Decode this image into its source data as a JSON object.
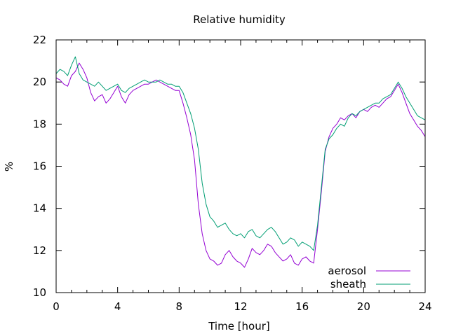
{
  "chart_data": {
    "type": "line",
    "title": "Relative humidity",
    "xlabel": "Time [hour]",
    "ylabel": "%",
    "xlim": [
      0,
      24
    ],
    "ylim": [
      10,
      22
    ],
    "xticks": [
      "0",
      "4",
      "8",
      "12",
      "16",
      "20",
      "24"
    ],
    "yticks": [
      "10",
      "12",
      "14",
      "16",
      "18",
      "20",
      "22"
    ],
    "grid": false,
    "legend_position": "bottom-right",
    "series": [
      {
        "name": "aerosol",
        "color": "#9400d3",
        "x": [
          0,
          0.25,
          0.5,
          0.75,
          1,
          1.25,
          1.5,
          1.75,
          2,
          2.25,
          2.5,
          2.75,
          3,
          3.25,
          3.5,
          3.75,
          4,
          4.25,
          4.5,
          4.75,
          5,
          5.25,
          5.5,
          5.75,
          6,
          6.25,
          6.5,
          6.75,
          7,
          7.25,
          7.5,
          7.75,
          8,
          8.25,
          8.5,
          8.75,
          9,
          9.25,
          9.5,
          9.75,
          10,
          10.25,
          10.5,
          10.75,
          11,
          11.25,
          11.5,
          11.75,
          12,
          12.25,
          12.5,
          12.75,
          13,
          13.25,
          13.5,
          13.75,
          14,
          14.25,
          14.5,
          14.75,
          15,
          15.25,
          15.5,
          15.75,
          16,
          16.25,
          16.5,
          16.75,
          17,
          17.25,
          17.5,
          17.75,
          18,
          18.25,
          18.5,
          18.75,
          19,
          19.25,
          19.5,
          19.75,
          20,
          20.25,
          20.5,
          20.75,
          21,
          21.25,
          21.5,
          21.75,
          22,
          22.25,
          22.5,
          22.75,
          23,
          23.25,
          23.5,
          23.75,
          24
        ],
        "y": [
          20.2,
          20.1,
          19.9,
          19.8,
          20.3,
          20.5,
          20.9,
          20.6,
          20.2,
          19.5,
          19.1,
          19.3,
          19.4,
          19.0,
          19.2,
          19.5,
          19.8,
          19.3,
          19.0,
          19.4,
          19.6,
          19.7,
          19.8,
          19.9,
          19.9,
          20.0,
          20.1,
          20.0,
          19.9,
          19.8,
          19.7,
          19.6,
          19.6,
          19.0,
          18.3,
          17.5,
          16.3,
          14.2,
          12.8,
          12.0,
          11.6,
          11.5,
          11.3,
          11.4,
          11.8,
          12.0,
          11.7,
          11.5,
          11.4,
          11.2,
          11.6,
          12.1,
          11.9,
          11.8,
          12.0,
          12.3,
          12.2,
          11.9,
          11.7,
          11.5,
          11.6,
          11.8,
          11.4,
          11.3,
          11.6,
          11.7,
          11.5,
          11.4,
          13.0,
          14.8,
          16.7,
          17.4,
          17.8,
          18.0,
          18.3,
          18.2,
          18.4,
          18.5,
          18.3,
          18.6,
          18.7,
          18.6,
          18.8,
          18.9,
          18.8,
          19.0,
          19.2,
          19.3,
          19.6,
          19.9,
          19.5,
          19.0,
          18.5,
          18.2,
          17.9,
          17.7,
          17.4
        ]
      },
      {
        "name": "sheath",
        "color": "#009e73",
        "x": [
          0,
          0.25,
          0.5,
          0.75,
          1,
          1.25,
          1.5,
          1.75,
          2,
          2.25,
          2.5,
          2.75,
          3,
          3.25,
          3.5,
          3.75,
          4,
          4.25,
          4.5,
          4.75,
          5,
          5.25,
          5.5,
          5.75,
          6,
          6.25,
          6.5,
          6.75,
          7,
          7.25,
          7.5,
          7.75,
          8,
          8.25,
          8.5,
          8.75,
          9,
          9.25,
          9.5,
          9.75,
          10,
          10.25,
          10.5,
          10.75,
          11,
          11.25,
          11.5,
          11.75,
          12,
          12.25,
          12.5,
          12.75,
          13,
          13.25,
          13.5,
          13.75,
          14,
          14.25,
          14.5,
          14.75,
          15,
          15.25,
          15.5,
          15.75,
          16,
          16.25,
          16.5,
          16.75,
          17,
          17.25,
          17.5,
          17.75,
          18,
          18.25,
          18.5,
          18.75,
          19,
          19.25,
          19.5,
          19.75,
          20,
          20.25,
          20.5,
          20.75,
          21,
          21.25,
          21.5,
          21.75,
          22,
          22.25,
          22.5,
          22.75,
          23,
          23.25,
          23.5,
          23.75,
          24
        ],
        "y": [
          20.4,
          20.6,
          20.5,
          20.3,
          20.8,
          21.2,
          20.4,
          20.1,
          20.0,
          19.9,
          19.8,
          20.0,
          19.8,
          19.6,
          19.7,
          19.8,
          19.9,
          19.6,
          19.5,
          19.7,
          19.8,
          19.9,
          20.0,
          20.1,
          20.0,
          20.0,
          20.0,
          20.1,
          20.0,
          19.9,
          19.9,
          19.8,
          19.8,
          19.5,
          19.0,
          18.5,
          17.8,
          16.8,
          15.2,
          14.2,
          13.6,
          13.4,
          13.1,
          13.2,
          13.3,
          13.0,
          12.8,
          12.7,
          12.8,
          12.6,
          12.9,
          13.0,
          12.7,
          12.6,
          12.8,
          13.0,
          13.1,
          12.9,
          12.6,
          12.3,
          12.4,
          12.6,
          12.5,
          12.2,
          12.4,
          12.3,
          12.2,
          12.0,
          13.2,
          15.0,
          16.8,
          17.3,
          17.5,
          17.8,
          18.0,
          17.9,
          18.3,
          18.5,
          18.4,
          18.6,
          18.7,
          18.8,
          18.9,
          19.0,
          19.0,
          19.2,
          19.3,
          19.4,
          19.7,
          20.0,
          19.7,
          19.3,
          19.0,
          18.7,
          18.4,
          18.3,
          18.2
        ]
      }
    ]
  }
}
